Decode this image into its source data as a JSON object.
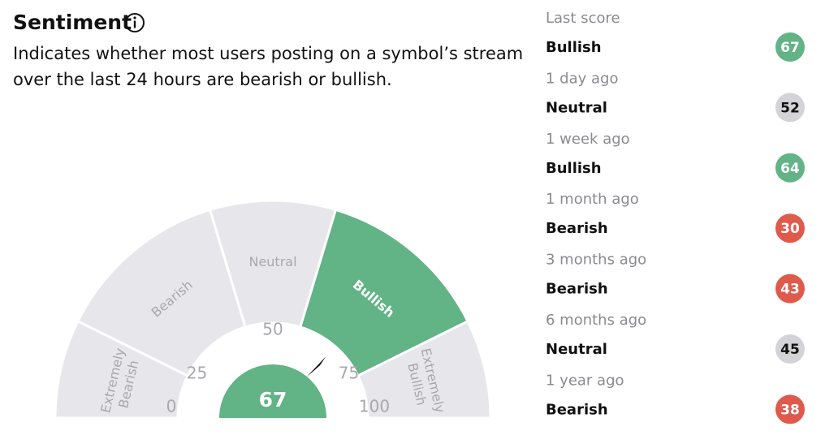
{
  "header": {
    "title": "Sentiment",
    "description": "Indicates whether most users posting on a symbol’s stream over the last 24 hours are bearish or bullish."
  },
  "gauge": {
    "value": 67,
    "ticks": [
      0,
      25,
      50,
      75,
      100
    ],
    "active_color": "#62b385",
    "inactive_color": "#e7e6ea",
    "segments": [
      {
        "lines": [
          "Extremely",
          "Bearish"
        ],
        "from": 0,
        "to": 22
      },
      {
        "lines": [
          "Bearish"
        ],
        "from": 22,
        "to": 43
      },
      {
        "lines": [
          "Neutral"
        ],
        "from": 43,
        "to": 57
      },
      {
        "lines": [
          "Bullish"
        ],
        "from": 57,
        "to": 78
      },
      {
        "lines": [
          "Extremely",
          "Bullish"
        ],
        "from": 78,
        "to": 100
      }
    ]
  },
  "history_colors": {
    "Bullish": "#62b385",
    "Neutral": "#d3d3d8",
    "Bearish": "#e05a4c"
  },
  "history": [
    {
      "period": "Last score",
      "label": "Bullish",
      "score": 67
    },
    {
      "period": "1 day ago",
      "label": "Neutral",
      "score": 52
    },
    {
      "period": "1 week ago",
      "label": "Bullish",
      "score": 64
    },
    {
      "period": "1 month ago",
      "label": "Bearish",
      "score": 30
    },
    {
      "period": "3 months ago",
      "label": "Bearish",
      "score": 43
    },
    {
      "period": "6 months ago",
      "label": "Neutral",
      "score": 45
    },
    {
      "period": "1 year ago",
      "label": "Bearish",
      "score": 38
    }
  ]
}
